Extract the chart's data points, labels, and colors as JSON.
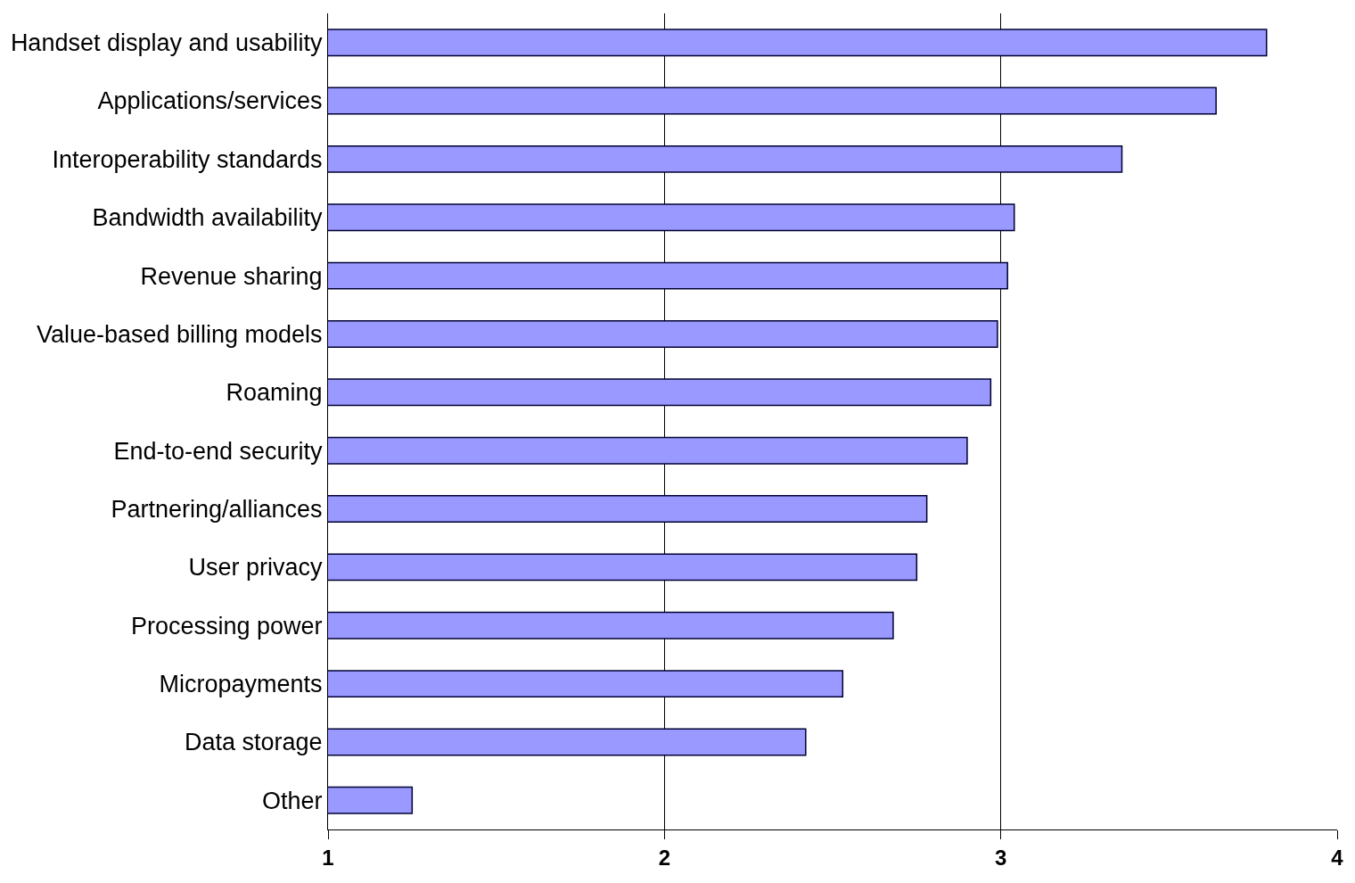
{
  "chart_data": {
    "type": "bar",
    "orientation": "horizontal",
    "categories": [
      "Handset display and usability",
      "Applications/services",
      "Interoperability standards",
      "Bandwidth availability",
      "Revenue sharing",
      "Value-based billing models",
      "Roaming",
      "End-to-end security",
      "Partnering/alliances",
      "User privacy",
      "Processing power",
      "Micropayments",
      "Data storage",
      "Other"
    ],
    "values": [
      3.79,
      3.64,
      3.36,
      3.04,
      3.02,
      2.99,
      2.97,
      2.9,
      2.78,
      2.75,
      2.68,
      2.53,
      2.42,
      1.25
    ],
    "color": "#9999ff",
    "xlim": [
      1,
      4
    ],
    "xticks": [
      1,
      2,
      3,
      4
    ],
    "grid": "x",
    "legend": false
  }
}
